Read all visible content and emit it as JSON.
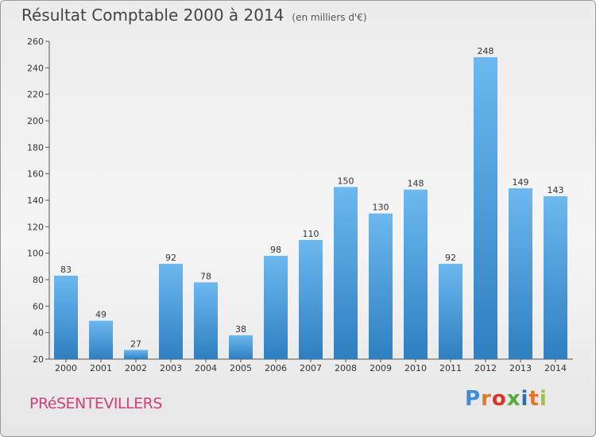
{
  "title": "Résultat Comptable 2000 à 2014",
  "subtitle": "(en milliers d'€)",
  "commune": "PRéSENTEVILLERS",
  "logo_letters": [
    "P",
    "r",
    "o",
    "x",
    "i",
    "t",
    "i"
  ],
  "colors": {
    "bar_light": "#6cb8ef",
    "bar_dark": "#2f7fc1",
    "text": "#333333",
    "commune": "#d0407a"
  },
  "chart_data": {
    "type": "bar",
    "title": "Résultat Comptable 2000 à 2014",
    "subtitle": "(en milliers d'€)",
    "categories": [
      "2000",
      "2001",
      "2002",
      "2003",
      "2004",
      "2005",
      "2006",
      "2007",
      "2008",
      "2009",
      "2010",
      "2011",
      "2012",
      "2013",
      "2014"
    ],
    "values": [
      83,
      49,
      27,
      92,
      78,
      38,
      98,
      110,
      150,
      130,
      148,
      92,
      248,
      149,
      143
    ],
    "ylim": [
      20,
      260
    ],
    "yticks": [
      20,
      40,
      60,
      80,
      100,
      120,
      140,
      160,
      180,
      200,
      220,
      240,
      260
    ],
    "grid": false,
    "data_labels": true
  }
}
